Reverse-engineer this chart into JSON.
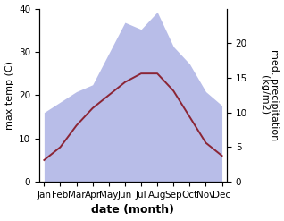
{
  "months": [
    "Jan",
    "Feb",
    "Mar",
    "Apr",
    "May",
    "Jun",
    "Jul",
    "Aug",
    "Sep",
    "Oct",
    "Nov",
    "Dec"
  ],
  "month_positions": [
    0,
    1,
    2,
    3,
    4,
    5,
    6,
    7,
    8,
    9,
    10,
    11
  ],
  "max_temp": [
    5.0,
    8.0,
    13.0,
    17.0,
    20.0,
    23.0,
    25.0,
    25.0,
    21.0,
    15.0,
    9.0,
    6.0
  ],
  "precipitation": [
    10.0,
    11.5,
    13.0,
    14.0,
    18.5,
    23.0,
    22.0,
    24.5,
    19.5,
    17.0,
    13.0,
    11.0
  ],
  "temp_color": "#8b2535",
  "precip_fill_color": "#b8bde8",
  "ylabel_left": "max temp (C)",
  "ylabel_right": "med. precipitation\n(kg/m2)",
  "xlabel": "date (month)",
  "ylim_left": [
    0,
    40
  ],
  "ylim_right": [
    0,
    25
  ],
  "yticks_left": [
    0,
    10,
    20,
    30,
    40
  ],
  "yticks_right": [
    0,
    5,
    10,
    15,
    20
  ],
  "bg_color": "#ffffff",
  "label_fontsize": 8,
  "tick_fontsize": 7.5,
  "xlabel_fontsize": 9,
  "linewidth_temp": 1.4
}
